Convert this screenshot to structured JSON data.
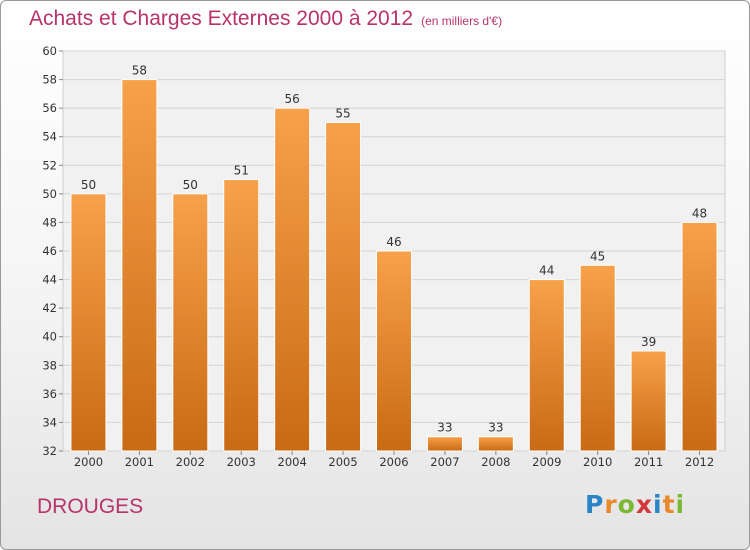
{
  "chart_data": {
    "type": "bar",
    "title": "Achats et Charges Externes 2000 à 2012",
    "subtitle": "(en milliers d'€)",
    "categories": [
      "2000",
      "2001",
      "2002",
      "2003",
      "2004",
      "2005",
      "2006",
      "2007",
      "2008",
      "2009",
      "2010",
      "2011",
      "2012"
    ],
    "values": [
      50,
      58,
      50,
      51,
      56,
      55,
      46,
      33,
      33,
      44,
      45,
      39,
      48
    ],
    "ylim": [
      32,
      60
    ],
    "yticks": [
      32,
      34,
      36,
      38,
      40,
      42,
      44,
      46,
      48,
      50,
      52,
      54,
      56,
      58,
      60
    ],
    "grid": true,
    "bar_color_top": "#f7a14a",
    "bar_color_bottom": "#c96a14"
  },
  "footer": {
    "place_name": "DROUGES",
    "logo_letters": [
      {
        "ch": "P",
        "color": "#2a84c6"
      },
      {
        "ch": "r",
        "color": "#e8892b"
      },
      {
        "ch": "o",
        "color": "#7cb833"
      },
      {
        "ch": "x",
        "color": "#d4383a"
      },
      {
        "ch": "i",
        "color": "#2a84c6"
      },
      {
        "ch": "t",
        "color": "#e8892b"
      },
      {
        "ch": "i",
        "color": "#7cb833"
      }
    ]
  }
}
